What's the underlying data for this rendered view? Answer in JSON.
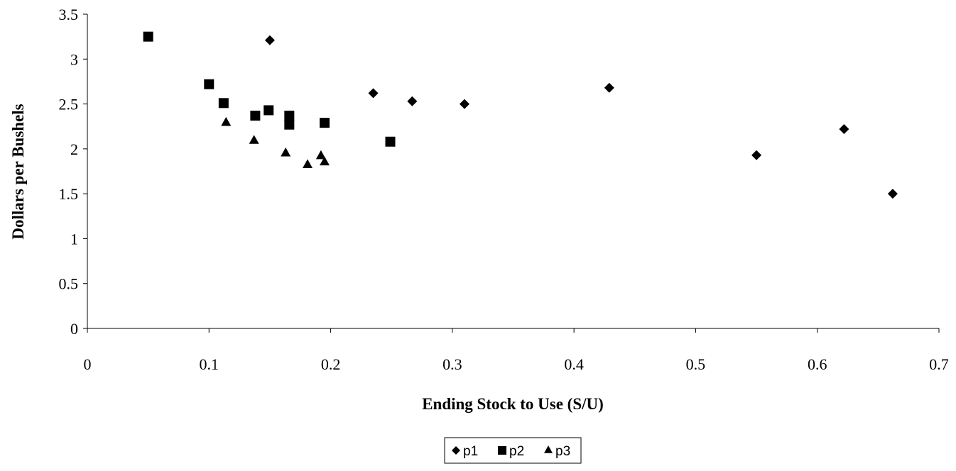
{
  "chart_data": {
    "type": "scatter",
    "title": "",
    "xlabel": "Ending Stock to Use (S/U)",
    "ylabel": "Dollars per Bushels",
    "xlim": [
      0,
      0.7
    ],
    "ylim": [
      0,
      3.5
    ],
    "x_ticks": [
      "0",
      "0.1",
      "0.2",
      "0.3",
      "0.4",
      "0.5",
      "0.6",
      "0.7"
    ],
    "y_ticks": [
      "0",
      "0.5",
      "1",
      "1.5",
      "2",
      "2.5",
      "3",
      "3.5"
    ],
    "grid": false,
    "legend_position": "bottom-center",
    "series": [
      {
        "name": "p1",
        "marker": "diamond",
        "color": "#000000",
        "points": [
          [
            0.15,
            3.21
          ],
          [
            0.235,
            2.62
          ],
          [
            0.267,
            2.53
          ],
          [
            0.31,
            2.5
          ],
          [
            0.429,
            2.68
          ],
          [
            0.55,
            1.93
          ],
          [
            0.622,
            2.22
          ],
          [
            0.662,
            1.5
          ]
        ]
      },
      {
        "name": "p2",
        "marker": "square",
        "color": "#000000",
        "points": [
          [
            0.05,
            3.25
          ],
          [
            0.1,
            2.72
          ],
          [
            0.112,
            2.51
          ],
          [
            0.138,
            2.37
          ],
          [
            0.149,
            2.43
          ],
          [
            0.166,
            2.37
          ],
          [
            0.166,
            2.27
          ],
          [
            0.195,
            2.29
          ],
          [
            0.249,
            2.08
          ]
        ]
      },
      {
        "name": "p3",
        "marker": "triangle",
        "color": "#000000",
        "points": [
          [
            0.114,
            2.3
          ],
          [
            0.137,
            2.1
          ],
          [
            0.163,
            1.96
          ],
          [
            0.181,
            1.83
          ],
          [
            0.192,
            1.93
          ],
          [
            0.195,
            1.86
          ]
        ]
      }
    ]
  }
}
